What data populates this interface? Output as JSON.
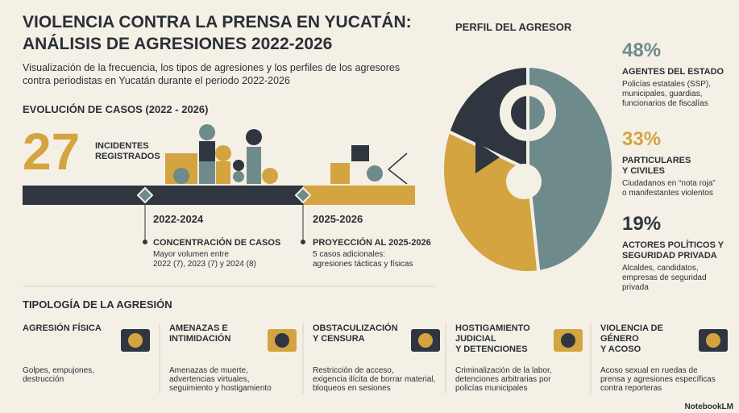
{
  "header": {
    "title_lines": [
      "VIOLENCIA CONTRA LA PRENSA EN YUCATÁN:",
      "ANÁLISIS DE AGRESIONES 2022-2026"
    ],
    "subtitle_lines": [
      "Visualización de la frecuencia, los tipos de agresiones y los perfiles de los agresores",
      "contra periodistas en Yucatán durante el periodo 2022-2026"
    ]
  },
  "evolution": {
    "heading": "EVOLUCIÓN DE CASOS (2022 - 2026)",
    "total": 27,
    "total_label_lines": [
      "INCIDENTES",
      "REGISTRADOS"
    ],
    "periods": [
      {
        "range": "2022-2024",
        "heading": "CONCENTRACIÓN DE CASOS",
        "text_lines": [
          "Mayor volumen entre",
          "2022 (7), 2023 (7) y 2024 (8)"
        ]
      },
      {
        "range": "2025-2026",
        "heading": "PROYECCIÓN AL 2025-2026",
        "text_lines": [
          "5 casos adicionales:",
          "agresiones tácticas y físicas"
        ]
      }
    ]
  },
  "profile": {
    "heading": "PERFIL DEL AGRESOR",
    "segments": [
      {
        "value": 48,
        "value_label": "48%",
        "color": "#6f8a8b",
        "name_lines": [
          "AGENTES DEL ESTADO"
        ],
        "desc_lines": [
          "Policías estatales (SSP),",
          "municipales, guardias,",
          "funcionarios de fiscalías"
        ]
      },
      {
        "value": 33,
        "value_label": "33%",
        "color": "#d4a441",
        "name_lines": [
          "PARTICULARES",
          "Y CIVILES"
        ],
        "desc_lines": [
          "Ciudadanos en “nota roja”",
          "o manifestantes violentos"
        ]
      },
      {
        "value": 19,
        "value_label": "19%",
        "color": "#2f3640",
        "name_lines": [
          "ACTORES POLÍTICOS Y",
          "SEGURIDAD PRIVADA"
        ],
        "desc_lines": [
          "Alcaldes, candidatos,",
          "empresas de seguridad",
          "privada"
        ]
      }
    ]
  },
  "typology": {
    "heading": "TIPOLOGÍA DE LA AGRESIÓN",
    "items": [
      {
        "title_lines": [
          "AGRESIÓN FÍSICA"
        ],
        "desc_lines": [
          "Golpes, empujones,",
          "destrucción"
        ]
      },
      {
        "title_lines": [
          "AMENAZAS E",
          "INTIMIDACIÓN"
        ],
        "desc_lines": [
          "Amenazas de muerte,",
          "advertencias virtuales,",
          "seguimiento y hostigamiento"
        ]
      },
      {
        "title_lines": [
          "OBSTACULIZACIÓN",
          "Y CENSURA"
        ],
        "desc_lines": [
          "Restricción de acceso,",
          "exigencia ilícita de borrar material,",
          "bloqueos en sesiones"
        ]
      },
      {
        "title_lines": [
          "HOSTIGAMIENTO",
          "JUDICIAL",
          "Y DETENCIONES"
        ],
        "desc_lines": [
          "Criminalización de la labor,",
          "detenciones arbitrarias por",
          "policías municipales"
        ]
      },
      {
        "title_lines": [
          "VIOLENCIA DE",
          "GÉNERO",
          "Y ACOSO"
        ],
        "desc_lines": [
          "Acoso sexual en ruedas de",
          "prensa y agresiones específicas",
          "contra reporteras"
        ]
      }
    ]
  },
  "footer": "NotebookLM"
}
